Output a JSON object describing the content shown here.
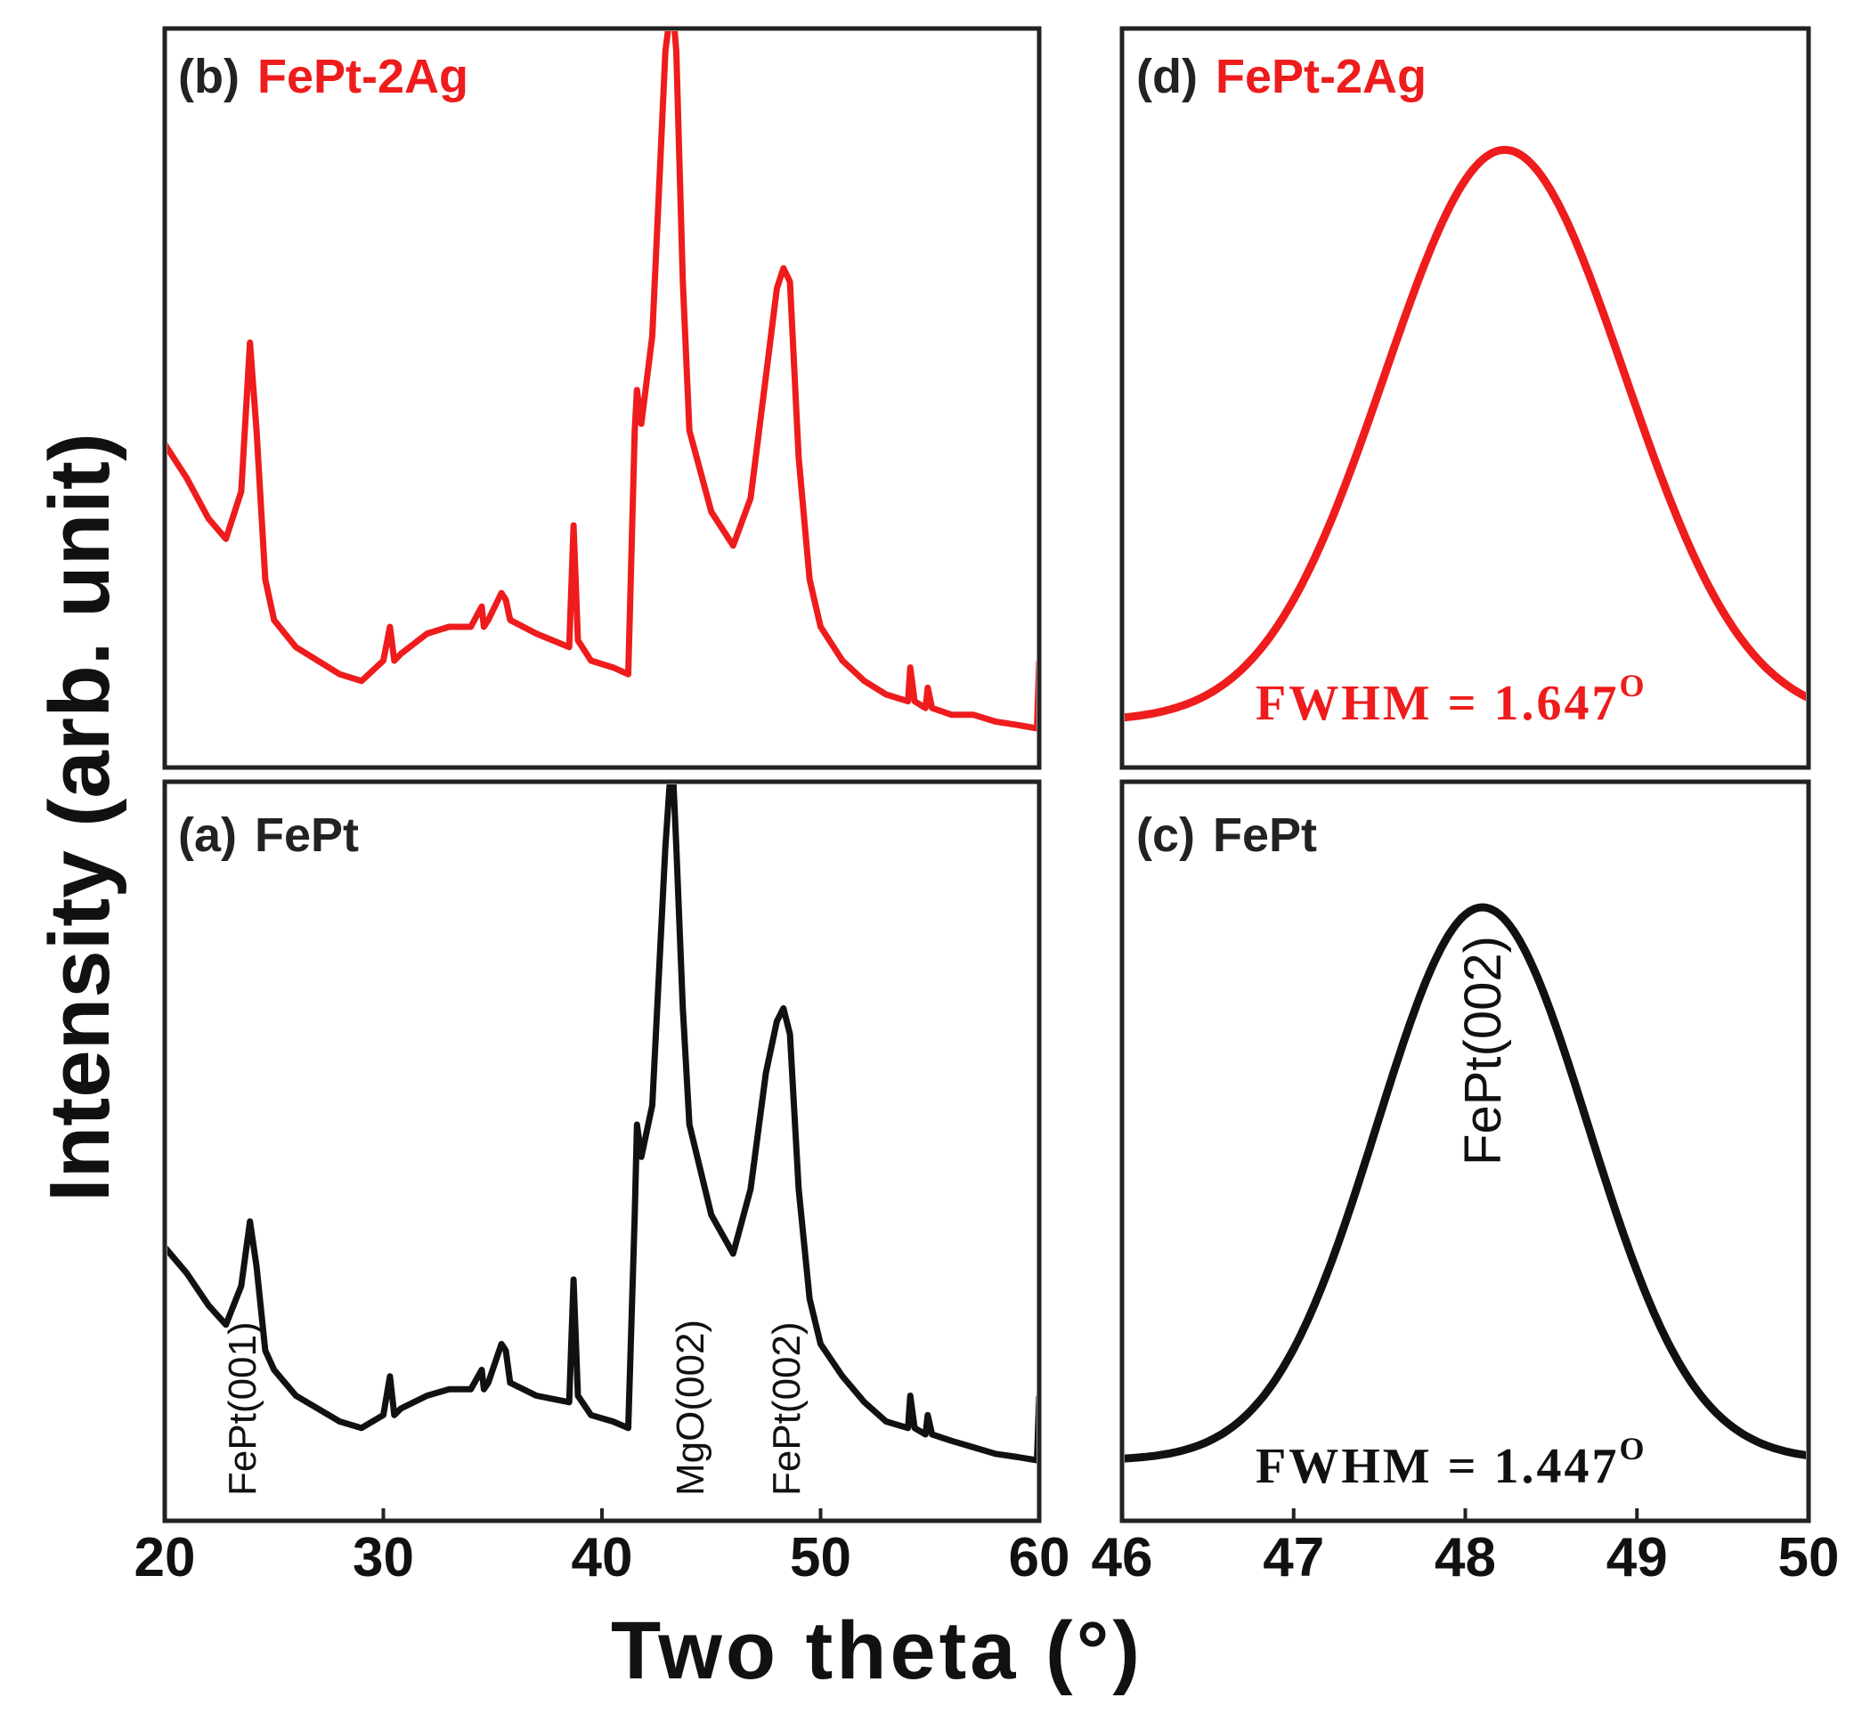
{
  "figure": {
    "xlabel": "Two theta (°)",
    "ylabel": "Intensity (arb. unit)"
  },
  "colors": {
    "red": "#ee1c1c",
    "black": "#111111"
  },
  "chart_data": [
    {
      "id": "b",
      "type": "line",
      "panel_letter": "(b)",
      "sample": "FePt-2Ag",
      "color": "#ee1c1c",
      "xlim": [
        20,
        60
      ],
      "ylim": [
        0,
        100
      ],
      "xticks": [],
      "x": [
        20,
        21,
        22,
        22.8,
        23.5,
        23.9,
        24.2,
        24.6,
        25,
        26,
        27,
        28,
        29,
        30,
        30.3,
        30.5,
        30.8,
        32,
        33,
        34,
        34.5,
        34.6,
        34.8,
        35.4,
        35.6,
        35.8,
        37,
        38.5,
        38.7,
        38.9,
        39.5,
        40.5,
        41.2,
        41.5,
        41.6,
        41.8,
        42.3,
        42.9,
        43.2,
        43.4,
        43.7,
        44,
        45,
        46,
        46.8,
        47.5,
        48,
        48.3,
        48.6,
        49,
        49.5,
        50,
        51,
        52,
        53,
        54,
        54.1,
        54.3,
        54.8,
        54.9,
        55.1,
        56,
        57,
        58,
        59,
        59.9,
        60
      ],
      "y": [
        42,
        37,
        31,
        28,
        35,
        57,
        44,
        22,
        16,
        12,
        10,
        8,
        7,
        10,
        15,
        10,
        11,
        14,
        15,
        15,
        18,
        15,
        16,
        20,
        19,
        16,
        14,
        12,
        30,
        13,
        10,
        9,
        8,
        44,
        50,
        45,
        58,
        100,
        108,
        100,
        66,
        44,
        32,
        27,
        34,
        52,
        65,
        68,
        66,
        40,
        22,
        15,
        10,
        7,
        5,
        4,
        9,
        4,
        3,
        6,
        3,
        2,
        2,
        1,
        0.5,
        0,
        10
      ]
    },
    {
      "id": "a",
      "type": "line",
      "panel_letter": "(a)",
      "sample": "FePt",
      "color": "#111111",
      "xlim": [
        20,
        60
      ],
      "ylim": [
        0,
        100
      ],
      "xticks": [
        20,
        30,
        40,
        50,
        60
      ],
      "x": [
        20,
        21,
        22,
        22.8,
        23.5,
        23.9,
        24.2,
        24.6,
        25,
        26,
        27,
        28,
        29,
        30,
        30.3,
        30.5,
        30.8,
        32,
        33,
        34,
        34.5,
        34.6,
        34.8,
        35.4,
        35.6,
        35.8,
        37,
        38.5,
        38.7,
        38.9,
        39.5,
        40.5,
        41.2,
        41.5,
        41.6,
        41.8,
        42.3,
        42.9,
        43.2,
        43.4,
        43.7,
        44,
        45,
        46,
        46.8,
        47.5,
        48,
        48.3,
        48.6,
        49,
        49.5,
        50,
        51,
        52,
        53,
        54,
        54.1,
        54.3,
        54.8,
        54.9,
        55.1,
        56,
        57,
        58,
        59,
        59.9,
        60
      ],
      "y": [
        33,
        29,
        24,
        21,
        27,
        37,
        30,
        17,
        14,
        10,
        8,
        6,
        5,
        7,
        13,
        7,
        8,
        10,
        11,
        11,
        14,
        11,
        12,
        18,
        17,
        12,
        10,
        9,
        28,
        10,
        7,
        6,
        5,
        38,
        52,
        47,
        55,
        95,
        110,
        95,
        70,
        52,
        38,
        32,
        42,
        60,
        68,
        70,
        66,
        42,
        25,
        18,
        13,
        9,
        6,
        5,
        10,
        5,
        4,
        7,
        4,
        3,
        2,
        1,
        0.5,
        0,
        10
      ],
      "annotations": [
        {
          "text": "FePt(001)",
          "x": 23.5
        },
        {
          "text": "MgO(002)",
          "x": 44.0
        },
        {
          "text": "FePt(002)",
          "x": 48.4
        }
      ]
    },
    {
      "id": "d",
      "type": "line",
      "panel_letter": "(d)",
      "sample": "FePt-2Ag",
      "color": "#ee1c1c",
      "xlim": [
        46,
        50
      ],
      "ylim": [
        0,
        100
      ],
      "xticks": [],
      "center": 48.23,
      "fwhm": 1.647,
      "baseline": 0,
      "amplitude": 93,
      "fwhm_label": "FWHM = 1.647",
      "degree_mark": "O"
    },
    {
      "id": "c",
      "type": "line",
      "panel_letter": "(c)",
      "sample": "FePt",
      "color": "#111111",
      "xlim": [
        46,
        50
      ],
      "ylim": [
        0,
        100
      ],
      "xticks": [
        46,
        47,
        48,
        49,
        50
      ],
      "center": 48.1,
      "fwhm": 1.447,
      "baseline": 0,
      "amplitude": 90,
      "fwhm_label": "FWHM = 1.447",
      "degree_mark": "O",
      "annotations": [
        {
          "text": "FePt(002)",
          "x": 48.1
        }
      ]
    }
  ]
}
